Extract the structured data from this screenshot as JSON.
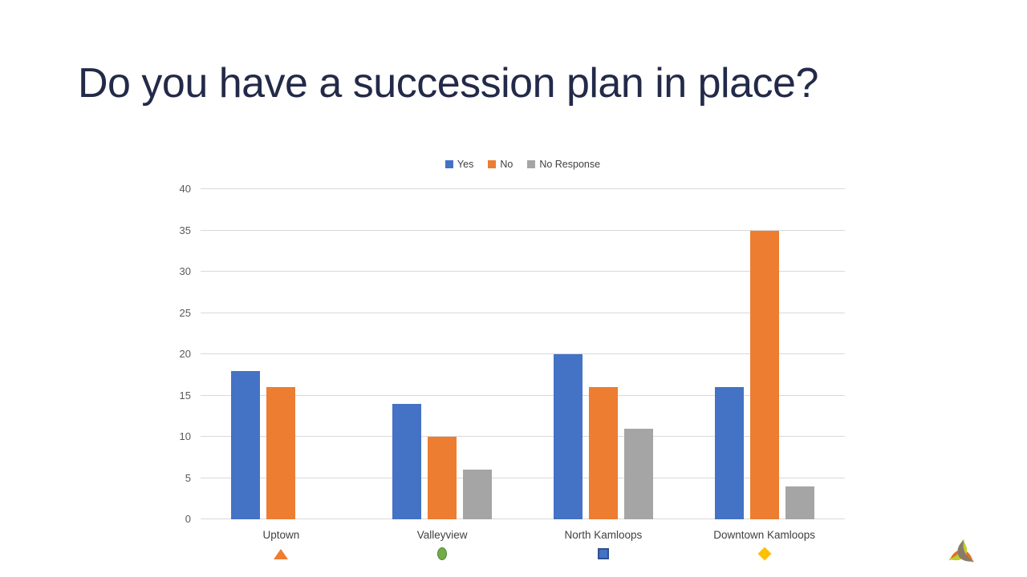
{
  "slide": {
    "title": "Do you have a succession plan in place?",
    "title_color": "#232A49",
    "background_color": "#FFFFFF"
  },
  "chart_data": {
    "type": "bar",
    "title": "Do you have a succession plan in place?",
    "xlabel": "",
    "ylabel": "",
    "categories": [
      "Uptown",
      "Valleyview",
      "North Kamloops",
      "Downtown Kamloops"
    ],
    "series": [
      {
        "name": "Yes",
        "color": "#4472C4",
        "values": [
          18,
          14,
          20,
          16
        ]
      },
      {
        "name": "No",
        "color": "#ED7D31",
        "values": [
          16,
          10,
          16,
          35
        ]
      },
      {
        "name": "No Response",
        "color": "#A5A5A5",
        "values": [
          0,
          6,
          11,
          4
        ]
      }
    ],
    "ylim": [
      0,
      40
    ],
    "yticks": [
      0,
      5,
      10,
      15,
      20,
      25,
      30,
      35,
      40
    ],
    "grid": true,
    "legend_position": "top",
    "gridline_color": "#D9D9D9",
    "axis_text_color": "#595959"
  },
  "category_markers": [
    {
      "shape": "triangle",
      "color": "#ED7D31",
      "border": ""
    },
    {
      "shape": "circle",
      "color": "#70AD47",
      "border": "#548235"
    },
    {
      "shape": "square",
      "color": "#4472C4",
      "border": "#2F528F"
    },
    {
      "shape": "diamond",
      "color": "#FFC000",
      "border": ""
    }
  ],
  "logo": {
    "name": "three-arc-triangle-logo",
    "colors": [
      "#E2711D",
      "#BCCF2F",
      "#8A7A6A"
    ]
  }
}
